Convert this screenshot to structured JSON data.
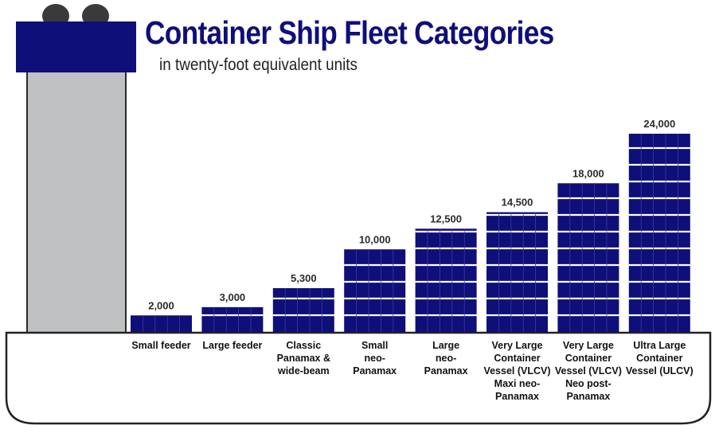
{
  "title": "Container Ship Fleet Categories",
  "subtitle": "in twenty-foot equivalent units",
  "colors": {
    "container": "#0e0f78",
    "stack": "#c0c1c3",
    "hull_stroke": "#222222"
  },
  "chart_data": {
    "type": "bar",
    "title": "Container Ship Fleet Categories",
    "subtitle": "in twenty-foot equivalent units",
    "categories": [
      [
        "Small feeder"
      ],
      [
        "Large feeder"
      ],
      [
        "Classic",
        "Panamax &",
        "wide-beam"
      ],
      [
        "Small",
        "neo-",
        "Panamax"
      ],
      [
        "Large",
        "neo-",
        "Panamax"
      ],
      [
        "Very Large",
        "Container",
        "Vessel (VLCV)",
        "Maxi neo-",
        "Panamax"
      ],
      [
        "Very Large",
        "Container",
        "Vessel (VLCV)",
        "Neo post-",
        "Panamax"
      ],
      [
        "Ultra Large",
        "Container",
        "Vessel (ULCV)"
      ]
    ],
    "values": [
      2000,
      3000,
      5300,
      10000,
      12500,
      14500,
      18000,
      24000
    ],
    "value_labels": [
      "2,000",
      "3,000",
      "5,300",
      "10,000",
      "12,500",
      "14,500",
      "18,000",
      "24,000"
    ],
    "ylim": [
      0,
      24000
    ],
    "grid": false,
    "legend": "none"
  }
}
